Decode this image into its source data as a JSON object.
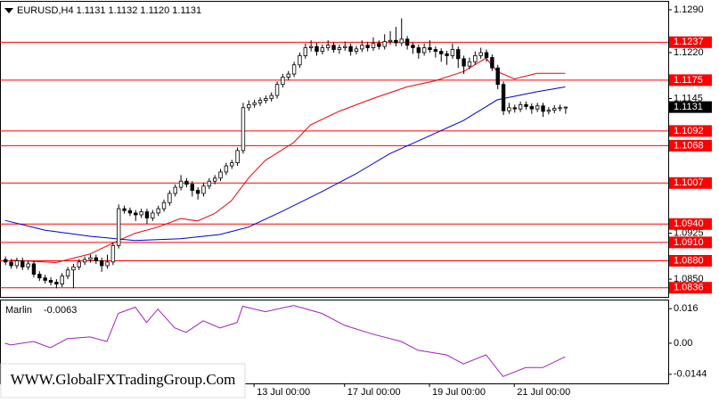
{
  "chart_data": [
    {
      "type": "candlestick",
      "header": "EURUSD,H4  1.1131 1.1132 1.1120 1.1131",
      "watermark": "WWW.GlobalFXTradingGroup.Com",
      "candles": [
        [
          1.0882,
          1.0887,
          1.0873,
          1.0878
        ],
        [
          1.0878,
          1.0883,
          1.0867,
          1.0872
        ],
        [
          1.0872,
          1.0885,
          1.0867,
          1.088
        ],
        [
          1.088,
          1.0885,
          1.0865,
          1.087
        ],
        [
          1.087,
          1.088,
          1.0865,
          1.0875
        ],
        [
          1.0875,
          1.088,
          1.0853,
          1.0858
        ],
        [
          1.0858,
          1.0863,
          1.0847,
          1.0852
        ],
        [
          1.0852,
          1.0857,
          1.0843,
          1.0848
        ],
        [
          1.0848,
          1.0853,
          1.084,
          1.0845
        ],
        [
          1.0845,
          1.085,
          1.0835,
          1.0842
        ],
        [
          1.0842,
          1.086,
          1.0837,
          1.0855
        ],
        [
          1.0855,
          1.087,
          1.085,
          1.0865
        ],
        [
          1.0865,
          1.0875,
          1.0835,
          1.087
        ],
        [
          1.087,
          1.0883,
          1.0865,
          1.0878
        ],
        [
          1.0878,
          1.0887,
          1.0873,
          1.0882
        ],
        [
          1.0882,
          1.089,
          1.0877,
          1.0885
        ],
        [
          1.0885,
          1.089,
          1.0875,
          1.088
        ],
        [
          1.088,
          1.0885,
          1.0862,
          1.0872
        ],
        [
          1.0872,
          1.089,
          1.0867,
          1.0878
        ],
        [
          1.0878,
          1.091,
          1.0873,
          1.0905
        ],
        [
          1.0905,
          1.0972,
          1.09,
          1.0965
        ],
        [
          1.0965,
          1.097,
          1.0957,
          1.0962
        ],
        [
          1.0962,
          1.0967,
          1.0953,
          1.0958
        ],
        [
          1.0958,
          1.0963,
          1.0945,
          1.0955
        ],
        [
          1.0955,
          1.0965,
          1.095,
          1.096
        ],
        [
          1.096,
          1.0965,
          1.094,
          1.095
        ],
        [
          1.095,
          1.0963,
          1.0945,
          1.0958
        ],
        [
          1.0958,
          1.097,
          1.0953,
          1.0965
        ],
        [
          1.0965,
          1.098,
          1.096,
          1.0975
        ],
        [
          1.0975,
          1.0995,
          1.097,
          1.099
        ],
        [
          1.099,
          1.1005,
          1.0985,
          1.1
        ],
        [
          1.1,
          1.102,
          1.0995,
          1.101
        ],
        [
          1.101,
          1.1015,
          1.1,
          1.1005
        ],
        [
          1.1005,
          1.101,
          1.0985,
          1.0995
        ],
        [
          1.0995,
          1.1,
          1.098,
          1.099
        ],
        [
          1.099,
          1.1007,
          1.0985,
          1.1002
        ],
        [
          1.1002,
          1.1015,
          1.0997,
          1.101
        ],
        [
          1.101,
          1.102,
          1.1005,
          1.1015
        ],
        [
          1.1015,
          1.103,
          1.101,
          1.1025
        ],
        [
          1.1025,
          1.104,
          1.102,
          1.1035
        ],
        [
          1.1035,
          1.1045,
          1.103,
          1.104
        ],
        [
          1.104,
          1.1065,
          1.1035,
          1.106
        ],
        [
          1.106,
          1.1138,
          1.1055,
          1.113
        ],
        [
          1.113,
          1.1142,
          1.1125,
          1.1135
        ],
        [
          1.1135,
          1.1143,
          1.113,
          1.1138
        ],
        [
          1.1138,
          1.1147,
          1.1133,
          1.1142
        ],
        [
          1.1142,
          1.115,
          1.1137,
          1.1145
        ],
        [
          1.1145,
          1.1155,
          1.114,
          1.115
        ],
        [
          1.115,
          1.1173,
          1.1145,
          1.1168
        ],
        [
          1.1168,
          1.1185,
          1.1163,
          1.118
        ],
        [
          1.118,
          1.119,
          1.1175,
          1.1185
        ],
        [
          1.1185,
          1.1205,
          1.118,
          1.12
        ],
        [
          1.12,
          1.122,
          1.1195,
          1.1215
        ],
        [
          1.1215,
          1.1235,
          1.121,
          1.1228
        ],
        [
          1.1228,
          1.124,
          1.1222,
          1.123
        ],
        [
          1.123,
          1.1236,
          1.1215,
          1.1222
        ],
        [
          1.1222,
          1.1233,
          1.1217,
          1.1228
        ],
        [
          1.1228,
          1.124,
          1.1223,
          1.1232
        ],
        [
          1.1232,
          1.1237,
          1.122,
          1.1225
        ],
        [
          1.1225,
          1.1233,
          1.1218,
          1.1228
        ],
        [
          1.1228,
          1.1238,
          1.1223,
          1.123
        ],
        [
          1.123,
          1.1235,
          1.1215,
          1.1222
        ],
        [
          1.1222,
          1.1231,
          1.1217,
          1.1226
        ],
        [
          1.1226,
          1.124,
          1.1221,
          1.1232
        ],
        [
          1.1232,
          1.1237,
          1.1222,
          1.1228
        ],
        [
          1.1228,
          1.1245,
          1.1223,
          1.1235
        ],
        [
          1.1235,
          1.124,
          1.1225,
          1.123
        ],
        [
          1.123,
          1.125,
          1.1225,
          1.1238
        ],
        [
          1.1238,
          1.1255,
          1.1233,
          1.124
        ],
        [
          1.124,
          1.1262,
          1.123,
          1.1236
        ],
        [
          1.1236,
          1.1276,
          1.1231,
          1.1242
        ],
        [
          1.1242,
          1.1247,
          1.1225,
          1.1232
        ],
        [
          1.1232,
          1.1237,
          1.1218,
          1.1228
        ],
        [
          1.1228,
          1.1233,
          1.121,
          1.122
        ],
        [
          1.122,
          1.1235,
          1.1215,
          1.1228
        ],
        [
          1.1228,
          1.124,
          1.122,
          1.1225
        ],
        [
          1.1225,
          1.123,
          1.1212,
          1.1222
        ],
        [
          1.1222,
          1.1227,
          1.1205,
          1.1218
        ],
        [
          1.1218,
          1.1223,
          1.12,
          1.1215
        ],
        [
          1.1215,
          1.1235,
          1.121,
          1.1225
        ],
        [
          1.1225,
          1.123,
          1.1195,
          1.121
        ],
        [
          1.121,
          1.1215,
          1.1185,
          1.1198
        ],
        [
          1.1198,
          1.1212,
          1.1193,
          1.1205
        ],
        [
          1.1205,
          1.1222,
          1.12,
          1.1215
        ],
        [
          1.1215,
          1.1228,
          1.121,
          1.122
        ],
        [
          1.122,
          1.1225,
          1.1205,
          1.1212
        ],
        [
          1.1212,
          1.1217,
          1.119,
          1.1195
        ],
        [
          1.1195,
          1.12,
          1.116,
          1.1168
        ],
        [
          1.1168,
          1.1173,
          1.1118,
          1.1125
        ],
        [
          1.1125,
          1.1138,
          1.112,
          1.113
        ],
        [
          1.113,
          1.1135,
          1.1122,
          1.1128
        ],
        [
          1.1128,
          1.114,
          1.1123,
          1.1135
        ],
        [
          1.1135,
          1.114,
          1.1127,
          1.1132
        ],
        [
          1.1132,
          1.1137,
          1.112,
          1.1128
        ],
        [
          1.1128,
          1.1138,
          1.1123,
          1.1133
        ],
        [
          1.1133,
          1.1138,
          1.1115,
          1.1124
        ],
        [
          1.1124,
          1.1131,
          1.1119,
          1.1126
        ],
        [
          1.1126,
          1.1134,
          1.1121,
          1.1129
        ],
        [
          1.1129,
          1.1135,
          1.1124,
          1.113
        ],
        [
          1.1131,
          1.1132,
          1.112,
          1.1131
        ]
      ],
      "bull_color": "#ffffff",
      "bear_color": "#000000",
      "candle_outline": "#000000",
      "lines": [
        {
          "color": "#e8000b",
          "x": [
            1,
            9,
            15,
            20,
            23,
            27,
            31,
            34,
            37,
            40,
            43,
            46,
            51,
            54,
            59,
            65,
            71,
            76,
            81,
            85,
            87,
            90,
            94,
            99
          ],
          "values": [
            1.0881,
            1.0877,
            1.0891,
            1.0913,
            1.0925,
            1.0935,
            1.0949,
            1.0945,
            1.0957,
            1.0978,
            1.1015,
            1.1044,
            1.1073,
            1.1102,
            1.1124,
            1.1145,
            1.1164,
            1.1174,
            1.1189,
            1.1211,
            1.1189,
            1.1177,
            1.1186,
            1.1186
          ]
        },
        {
          "color": "#0000cd",
          "x": [
            0,
            7,
            15,
            23,
            31,
            38,
            43,
            49,
            56,
            62,
            68,
            75,
            81,
            87,
            94,
            99
          ],
          "values": [
            1.0946,
            1.093,
            1.092,
            1.0913,
            1.0916,
            1.0923,
            1.0935,
            1.0961,
            1.0993,
            1.1022,
            1.1055,
            1.1084,
            1.1109,
            1.1143,
            1.1156,
            1.1164
          ]
        }
      ],
      "levels": [
        1.1237,
        1.1175,
        1.1092,
        1.1068,
        1.1007,
        {
          "value": 1.094,
          "label": "1.0940"
        },
        {
          "value": 1.091,
          "label": "1.0910"
        },
        {
          "value": 1.088,
          "label": "1.0880"
        },
        1.0836
      ],
      "level_color": "#ff0000",
      "last_price": 1.1131,
      "xlim": [
        -0.9,
        117.2
      ],
      "xticks": [
        {
          "value": 44,
          "label": "13 Jul 00:00"
        },
        {
          "value": 60,
          "label": "17 Jul 00:00"
        },
        {
          "value": 75,
          "label": "19 Jul 00:00"
        },
        {
          "value": 90,
          "label": "21 Jul 00:00"
        }
      ],
      "ylim": [
        1.0821,
        1.1303
      ],
      "yticks": [
        {
          "value": 1.129,
          "label": "1.1290"
        },
        {
          "value": 1.122,
          "label": "1.1220"
        },
        1.1145,
        1.0925,
        {
          "value": 1.085,
          "label": "1.0850"
        }
      ],
      "grid": false
    },
    {
      "type": "line",
      "name": "Marlin",
      "color": "#a020c0",
      "x": [
        0,
        1,
        5,
        8,
        11,
        15,
        18,
        20,
        23,
        25,
        27,
        30,
        32,
        35,
        38,
        41,
        42,
        46,
        51,
        56,
        60,
        65,
        70,
        73,
        78,
        81,
        85,
        88,
        92,
        95,
        99
      ],
      "values": [
        0,
        -0.0008,
        0.0008,
        -0.0021,
        0.0021,
        0.0029,
        0.0008,
        0.0138,
        0.0167,
        0.0096,
        0.0158,
        0.0071,
        0.005,
        0.0104,
        0.0071,
        0.0096,
        0.0171,
        0.0146,
        0.0175,
        0.0138,
        0.0083,
        0.0042,
        0.0008,
        -0.0033,
        -0.0054,
        -0.0096,
        -0.0054,
        -0.0154,
        -0.0113,
        -0.0113,
        -0.0063
      ],
      "xlim": [
        -0.9,
        117.2
      ],
      "ylim": [
        -0.0186,
        0.0198
      ],
      "yticks": [
        0.016,
        {
          "value": 0,
          "label": "0.00"
        },
        -0.0144
      ]
    }
  ]
}
